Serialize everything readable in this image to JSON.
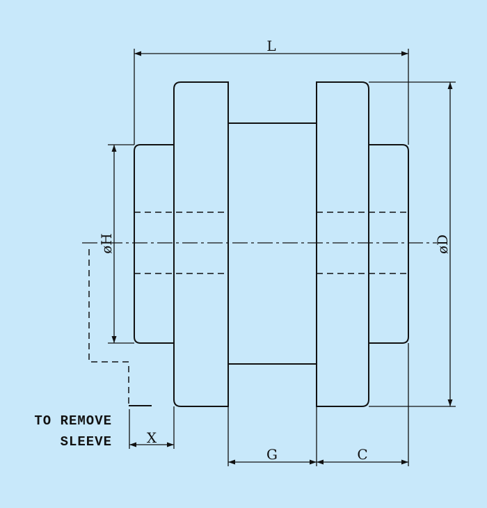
{
  "labels": {
    "length": "L",
    "outer_diameter": "øD",
    "hub_diameter": "øH",
    "gap": "G",
    "flange_width": "C",
    "removal_clearance": "X"
  },
  "note": {
    "line1": "TO REMOVE",
    "line2": "SLEEVE"
  }
}
